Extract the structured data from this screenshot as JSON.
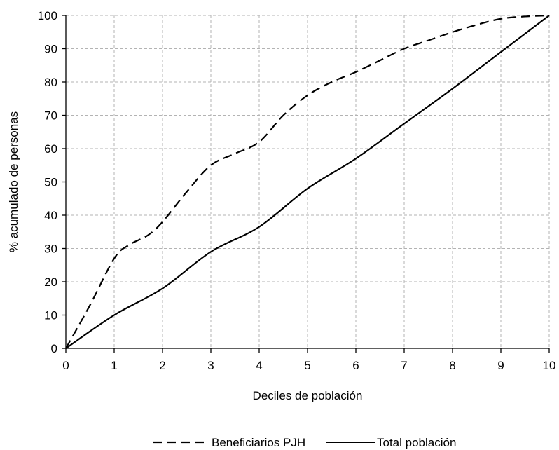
{
  "chart_data": {
    "type": "line",
    "title": "",
    "xlabel": "Deciles de población",
    "ylabel": "% acumulado de personas",
    "xlim": [
      0,
      10
    ],
    "ylim": [
      0,
      100
    ],
    "x_ticks": [
      "0",
      "1",
      "2",
      "3",
      "4",
      "5",
      "6",
      "7",
      "8",
      "9",
      "10"
    ],
    "y_ticks": [
      "0",
      "10",
      "20",
      "30",
      "40",
      "50",
      "60",
      "70",
      "80",
      "90",
      "100"
    ],
    "grid": true,
    "grid_style": "dashed",
    "legend_position": "bottom",
    "series": [
      {
        "name": "Beneficiarios PJH",
        "line_style": "dashed",
        "color": "#000000",
        "x": [
          0,
          0.5,
          1,
          1.3,
          1.7,
          2,
          2.5,
          3,
          3.5,
          4,
          4.5,
          5,
          5.5,
          6,
          6.5,
          7,
          7.5,
          8,
          8.5,
          9,
          9.5,
          10
        ],
        "y": [
          0,
          13,
          27,
          31,
          34,
          38,
          47,
          55,
          58.5,
          62,
          70,
          76,
          80,
          83,
          86.5,
          90,
          92.5,
          95,
          97.2,
          99,
          99.7,
          100
        ]
      },
      {
        "name": "Total población",
        "line_style": "solid",
        "color": "#000000",
        "x": [
          0,
          1,
          2,
          3,
          4,
          5,
          6,
          7,
          8,
          9,
          10
        ],
        "y": [
          0,
          10,
          18,
          29,
          36.5,
          48,
          57,
          67.5,
          78,
          89,
          100
        ]
      }
    ]
  }
}
